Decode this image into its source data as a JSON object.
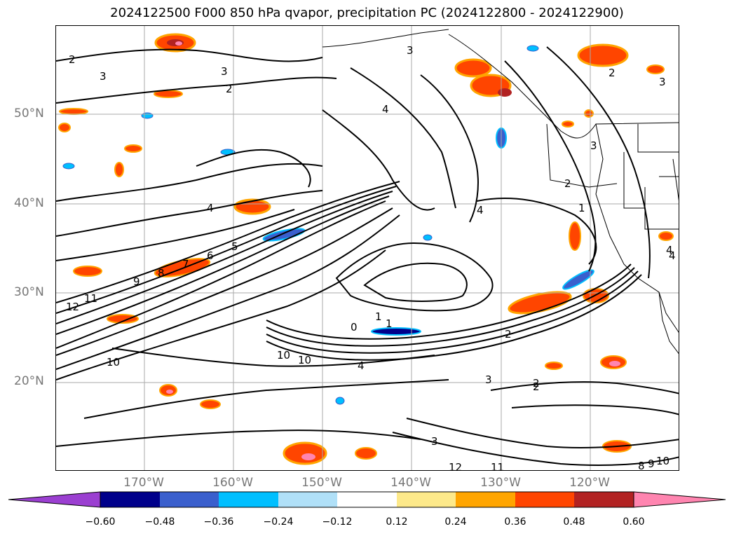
{
  "title": "2024122500 F000 850 hPa qvapor, precipitation PC (2024122800 - 2024122900)",
  "lat_labels": [
    "50°N",
    "40°N",
    "30°N",
    "20°N"
  ],
  "lon_labels": [
    "170°W",
    "160°W",
    "150°W",
    "140°W",
    "130°W",
    "120°W"
  ],
  "colorbar": {
    "ticks": [
      "−0.60",
      "−0.48",
      "−0.36",
      "−0.24",
      "−0.12",
      "0.12",
      "0.24",
      "0.36",
      "0.48",
      "0.60"
    ],
    "colors": [
      "#9b3fd1",
      "#00008b",
      "#3a5fcd",
      "#00bfff",
      "#b0e0f8",
      "#ffffff",
      "#fde98a",
      "#ffa500",
      "#ff4500",
      "#b22222",
      "#ff85b0"
    ]
  },
  "contour_labels": [
    "2",
    "3",
    "2",
    "3",
    "4",
    "3",
    "2",
    "3",
    "4",
    "1",
    "2",
    "12",
    "11",
    "10",
    "9",
    "8",
    "7",
    "6",
    "5",
    "4",
    "10",
    "10",
    "4",
    "3",
    "2",
    "1",
    "0",
    "1",
    "2",
    "4",
    "3",
    "8",
    "9",
    "10",
    "11",
    "12",
    "2",
    "3",
    "4"
  ]
}
